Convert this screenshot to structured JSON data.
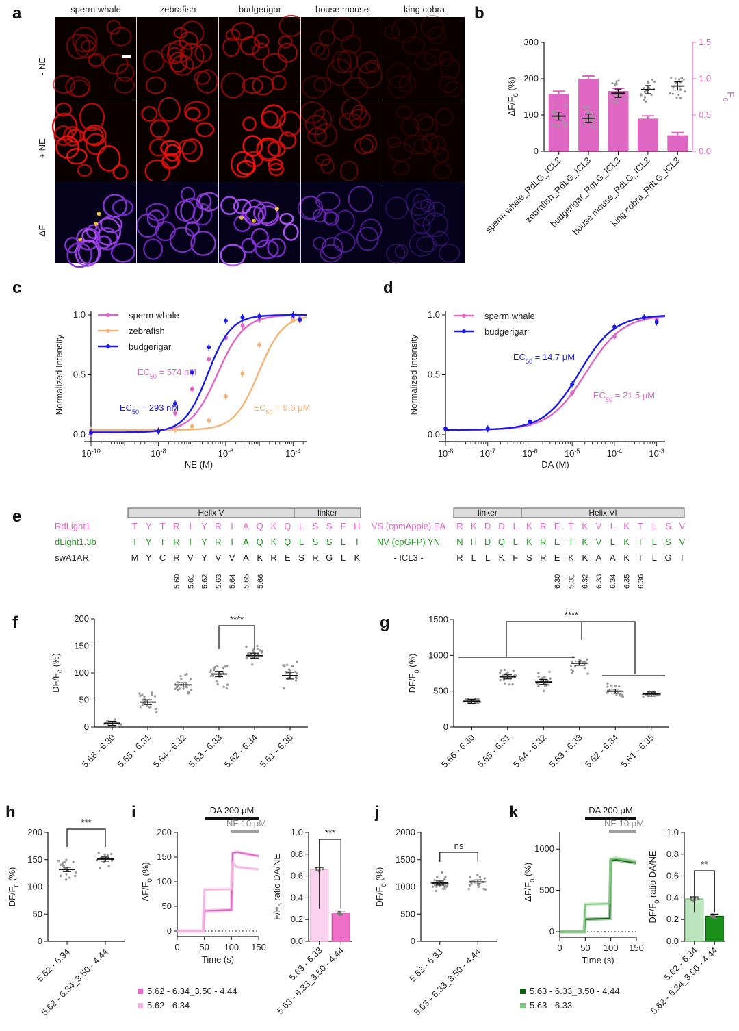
{
  "panel_labels": {
    "a": "a",
    "b": "b",
    "c": "c",
    "d": "d",
    "e": "e",
    "f": "f",
    "g": "g",
    "h": "h",
    "i": "i",
    "j": "j",
    "k": "k"
  },
  "colors": {
    "pink": "#e066c4",
    "orange": "#f2b477",
    "blue": "#1b1be8",
    "green": "#1f9a1f",
    "dark_green": "#0b5e0b",
    "light_green": "#8fce8f",
    "light_pink": "#f6b7e2",
    "grey": "#9a9a9a"
  },
  "chart_data": [
    {
      "id": "a",
      "type": "image_grid",
      "columns": [
        "sperm whale",
        "zebrafish",
        "budgerigar",
        "house mouse",
        "king cobra"
      ],
      "rows": [
        "- NE",
        "+ NE",
        "ΔF"
      ],
      "brightness": {
        "- NE": [
          0.55,
          0.7,
          0.7,
          0.35,
          0.12
        ],
        "+ NE": [
          0.95,
          0.95,
          1.0,
          0.5,
          0.18
        ],
        "ΔF": [
          1.0,
          0.85,
          1.0,
          0.6,
          0.25
        ]
      }
    },
    {
      "id": "b",
      "type": "bar",
      "categories": [
        "sperm whale_RdLG_ICL3",
        "zebrafish_RdLG_ICL3",
        "budgerigar_RdLG_ICL3",
        "house mouse_RdLG_ICL3",
        "king cobra_RdLG_ICL3"
      ],
      "F0_values": [
        0.79,
        1.0,
        0.83,
        0.45,
        0.22
      ],
      "dF_values": [
        97,
        91,
        160,
        170,
        180
      ],
      "ylabel_left": "ΔF/F0 (%)",
      "ylabel_right": "F0",
      "ylim_left": [
        0,
        300
      ],
      "ylim_right": [
        0,
        1.5
      ],
      "yticks_left": [
        "0",
        "100",
        "200",
        "300"
      ],
      "yticks_right": [
        "0.0",
        "0.5",
        "1.0",
        "1.5"
      ]
    },
    {
      "id": "c",
      "type": "line",
      "xlabel": "NE (M)",
      "ylabel": "Normalized Intensity",
      "xscale": "log",
      "xlim_log": [
        -10,
        -3.6
      ],
      "ylim": [
        0,
        1.0
      ],
      "xticks": [
        {
          "b": "10",
          "e": "-10",
          "v": -10
        },
        {
          "b": "10",
          "e": "-8",
          "v": -8
        },
        {
          "b": "10",
          "e": "-6",
          "v": -6
        },
        {
          "b": "10",
          "e": "-4",
          "v": -4
        }
      ],
      "yticks": [
        "0.0",
        "0.5",
        "1.0"
      ],
      "legend": [
        "sperm whale",
        "zebrafish",
        "budgerigar"
      ],
      "series": [
        {
          "name": "sperm whale",
          "ec50": "EC50 = 574 nM",
          "ec50_log": -6.24,
          "hill": 1.1,
          "base": 0.02,
          "x_log": [
            -10,
            -8,
            -7.5,
            -7,
            -6.5,
            -6,
            -5.5,
            -5,
            -4,
            -3.8
          ],
          "y": [
            0.01,
            0.03,
            0.18,
            0.38,
            0.63,
            0.81,
            0.91,
            0.96,
            0.99,
            0.97
          ]
        },
        {
          "name": "zebrafish",
          "ec50": "EC50 = 9.6 μM",
          "ec50_log": -5.02,
          "hill": 1.2,
          "base": 0.04,
          "x_log": [
            -10,
            -8,
            -7.5,
            -7,
            -6.5,
            -6,
            -5.5,
            -5,
            -4,
            -3.8
          ],
          "y": [
            0.04,
            0.04,
            0.04,
            0.07,
            0.12,
            0.32,
            0.51,
            0.75,
            0.96,
            0.95
          ]
        },
        {
          "name": "budgerigar",
          "ec50": "EC50 = 293 nM",
          "ec50_log": -6.53,
          "hill": 1.25,
          "base": 0.02,
          "x_log": [
            -10,
            -8,
            -7.5,
            -7,
            -6.5,
            -6,
            -5.5,
            -5,
            -4,
            -3.8
          ],
          "y": [
            0.02,
            0.03,
            0.26,
            0.52,
            0.73,
            0.95,
            0.98,
            0.99,
            1.0,
            0.96
          ]
        }
      ]
    },
    {
      "id": "d",
      "type": "line",
      "xlabel": "DA (M)",
      "ylabel": "Normalized Intensity",
      "xscale": "log",
      "xlim_log": [
        -8,
        -2.8
      ],
      "ylim": [
        0,
        1.0
      ],
      "xticks": [
        {
          "b": "10",
          "e": "-8",
          "v": -8
        },
        {
          "b": "10",
          "e": "-7",
          "v": -7
        },
        {
          "b": "10",
          "e": "-6",
          "v": -6
        },
        {
          "b": "10",
          "e": "-5",
          "v": -5
        },
        {
          "b": "10",
          "e": "-4",
          "v": -4
        },
        {
          "b": "10",
          "e": "-3",
          "v": -3
        }
      ],
      "yticks": [
        "0.0",
        "0.5",
        "1.0"
      ],
      "legend": [
        "sperm whale",
        "budgerigar"
      ],
      "series": [
        {
          "name": "sperm whale",
          "ec50": "EC50 = 21.5 μM",
          "ec50_log": -4.67,
          "hill": 1.0,
          "base": 0.04,
          "x_log": [
            -8,
            -7,
            -6,
            -5,
            -4,
            -3.3,
            -3
          ],
          "y": [
            0.05,
            0.05,
            0.09,
            0.35,
            0.82,
            0.98,
            0.96
          ]
        },
        {
          "name": "budgerigar",
          "ec50": "EC50 = 14.7 μM",
          "ec50_log": -4.83,
          "hill": 1.05,
          "base": 0.04,
          "x_log": [
            -8,
            -7,
            -6,
            -5,
            -4,
            -3.3,
            -3
          ],
          "y": [
            0.05,
            0.05,
            0.11,
            0.42,
            0.9,
            0.98,
            0.94
          ]
        }
      ]
    },
    {
      "id": "e",
      "type": "table",
      "header_segments": [
        "Helix V",
        "linker",
        "linker",
        "Helix VI"
      ],
      "rows": [
        {
          "name": "RdLight1",
          "left": [
            "T",
            "Y",
            "T",
            "R",
            "I",
            "Y",
            "R",
            "I",
            "A",
            "Q",
            "K",
            "Q",
            "L",
            "S",
            "S",
            "F",
            "H"
          ],
          "middle": "VS (cpmApple) EA",
          "right": [
            "R",
            "K",
            "D",
            "D",
            "L",
            "K",
            "R",
            "E",
            "T",
            "K",
            "V",
            "L",
            "K",
            "T",
            "L",
            "S",
            "V"
          ]
        },
        {
          "name": "dLight1.3b",
          "left": [
            "T",
            "Y",
            "T",
            "R",
            "I",
            "Y",
            "R",
            "I",
            "A",
            "Q",
            "K",
            "Q",
            "L",
            "S",
            "S",
            "L",
            "I"
          ],
          "middle": "NV (cpGFP) YN",
          "right": [
            "N",
            "H",
            "D",
            "Q",
            "L",
            "K",
            "R",
            "E",
            "T",
            "K",
            "V",
            "L",
            "K",
            "T",
            "L",
            "S",
            "V"
          ]
        },
        {
          "name": "swA1AR",
          "left": [
            "M",
            "Y",
            "C",
            "R",
            "V",
            "Y",
            "V",
            "V",
            "A",
            "K",
            "R",
            "E",
            "S",
            "R",
            "G",
            "L",
            "K"
          ],
          "middle": "- ICL3 -",
          "right": [
            "R",
            "L",
            "L",
            "K",
            "F",
            "S",
            "R",
            "E",
            "K",
            "K",
            "A",
            "A",
            "K",
            "T",
            "L",
            "G",
            "I"
          ]
        }
      ],
      "left_numbers": [
        "5.60",
        "5.61",
        "5.62",
        "5.63",
        "5.64",
        "5.65",
        "5.66"
      ],
      "right_numbers": [
        "6.30",
        "5.31",
        "6.32",
        "6.33",
        "6.34",
        "6.35",
        "6.36"
      ]
    },
    {
      "id": "f",
      "type": "scatter",
      "ylabel": "DF/F0 (%)",
      "ylim": [
        0,
        200
      ],
      "yticks": [
        "0",
        "50",
        "100",
        "150",
        "200"
      ],
      "categories": [
        "5.66 - 6.30",
        "5.65 - 6.31",
        "5.64 - 6.32",
        "5.63 - 6.33",
        "5.62 - 6.34",
        "5.61 - 6.35"
      ],
      "means": [
        7,
        46,
        78,
        98,
        132,
        95
      ],
      "spreads": [
        6,
        18,
        16,
        20,
        18,
        25
      ],
      "significance": [
        {
          "from": 3,
          "to": 4,
          "label": "****"
        }
      ]
    },
    {
      "id": "g",
      "type": "scatter",
      "ylabel": "DF/F0 (%)",
      "ylim": [
        0,
        1500
      ],
      "yticks": [
        "0",
        "500",
        "1000",
        "1500"
      ],
      "categories": [
        "5.66 - 6.30",
        "5.65 - 6.31",
        "5.64 - 6.32",
        "5.63 - 6.33",
        "5.62 - 6.34",
        "5.61 - 6.35"
      ],
      "means": [
        360,
        700,
        630,
        890,
        500,
        460
      ],
      "spreads": [
        40,
        110,
        140,
        120,
        110,
        35
      ],
      "significance": [
        {
          "label": "****"
        }
      ]
    },
    {
      "id": "h",
      "type": "scatter",
      "ylabel": "DF/F0 (%)",
      "ylim": [
        0,
        200
      ],
      "yticks": [
        "0",
        "50",
        "100",
        "150",
        "200"
      ],
      "categories": [
        "5.62 - 6.34",
        "5.62 - 6.34_3.50 - 4.44"
      ],
      "means": [
        132,
        151
      ],
      "spreads": [
        16,
        14
      ],
      "significance": [
        {
          "label": "***"
        }
      ]
    },
    {
      "id": "i",
      "type": "line",
      "xlabel": "Time (s)",
      "ylabel": "ΔF/F0 (%)",
      "xlim": [
        0,
        150
      ],
      "ylim": [
        0,
        200
      ],
      "xticks": [
        "0",
        "50",
        "100",
        "150"
      ],
      "yticks": [
        "0",
        "50",
        "100",
        "150",
        "200"
      ],
      "stim_da": "DA 200 μM",
      "stim_ne": "NE 10 μM",
      "legend": [
        "5.62 - 6.34_3.50 - 4.44",
        "5.62 - 6.34"
      ],
      "series": [
        {
          "name": "5.62 - 6.34_3.50 - 4.44",
          "x": [
            0,
            48,
            50,
            100,
            102,
            110,
            150
          ],
          "y": [
            0,
            0,
            41,
            43,
            158,
            160,
            152
          ]
        },
        {
          "name": "5.62 - 6.34",
          "x": [
            0,
            48,
            50,
            100,
            102,
            110,
            150
          ],
          "y": [
            0,
            0,
            84,
            85,
            138,
            130,
            125
          ]
        }
      ]
    },
    {
      "id": "i2",
      "type": "bar",
      "ylabel": "F/F0 ratio DA/NE",
      "ylim": [
        0,
        1.0
      ],
      "yticks": [
        "0.0",
        "0.2",
        "0.4",
        "0.6",
        "0.8",
        "1.0"
      ],
      "categories": [
        "5.63 - 6.33",
        "5.63 - 6.33_3.50 - 4.44"
      ],
      "values": [
        0.66,
        0.26
      ],
      "significance": [
        {
          "label": "***"
        }
      ]
    },
    {
      "id": "j",
      "type": "scatter",
      "ylabel": "DF/F0 (%)",
      "ylim": [
        0,
        2000
      ],
      "yticks": [
        "0",
        "500",
        "1000",
        "1500",
        "2000"
      ],
      "categories": [
        "5.63 - 6.33",
        "5.63 - 6.33_3.50 - 4.44"
      ],
      "means": [
        1070,
        1090
      ],
      "spreads": [
        150,
        120
      ],
      "significance": [
        {
          "label": "ns"
        }
      ]
    },
    {
      "id": "k",
      "type": "line",
      "xlabel": "Time (s)",
      "ylabel": "ΔF/F0 (%)",
      "xlim": [
        0,
        150
      ],
      "ylim": [
        0,
        1200
      ],
      "xticks": [
        "0",
        "50",
        "100",
        "150"
      ],
      "yticks": [
        "0",
        "500",
        "1000"
      ],
      "stim_da": "DA 200 μM",
      "stim_ne": "NE 10 μM",
      "legend": [
        "5.63 - 6.33_3.50 - 4.44",
        "5.63 - 6.33"
      ],
      "series": [
        {
          "name": "5.63 - 6.33_3.50 - 4.44",
          "x": [
            0,
            48,
            50,
            98,
            100,
            110,
            150
          ],
          "y": [
            0,
            0,
            150,
            160,
            860,
            870,
            830
          ]
        },
        {
          "name": "5.63 - 6.33",
          "x": [
            0,
            48,
            50,
            98,
            100,
            110,
            150
          ],
          "y": [
            0,
            0,
            330,
            340,
            880,
            890,
            850
          ]
        }
      ]
    },
    {
      "id": "k2",
      "type": "bar",
      "ylabel": "DF/F0 ratio DA/NE",
      "ylim": [
        0,
        1.0
      ],
      "yticks": [
        "0.0",
        "0.2",
        "0.4",
        "0.6",
        "0.8",
        "1.0"
      ],
      "categories": [
        "5.62 - 6.34",
        "5.62 - 6.34_3.50 - 4.44"
      ],
      "values": [
        0.39,
        0.23
      ],
      "significance": [
        {
          "label": "**"
        }
      ]
    }
  ]
}
